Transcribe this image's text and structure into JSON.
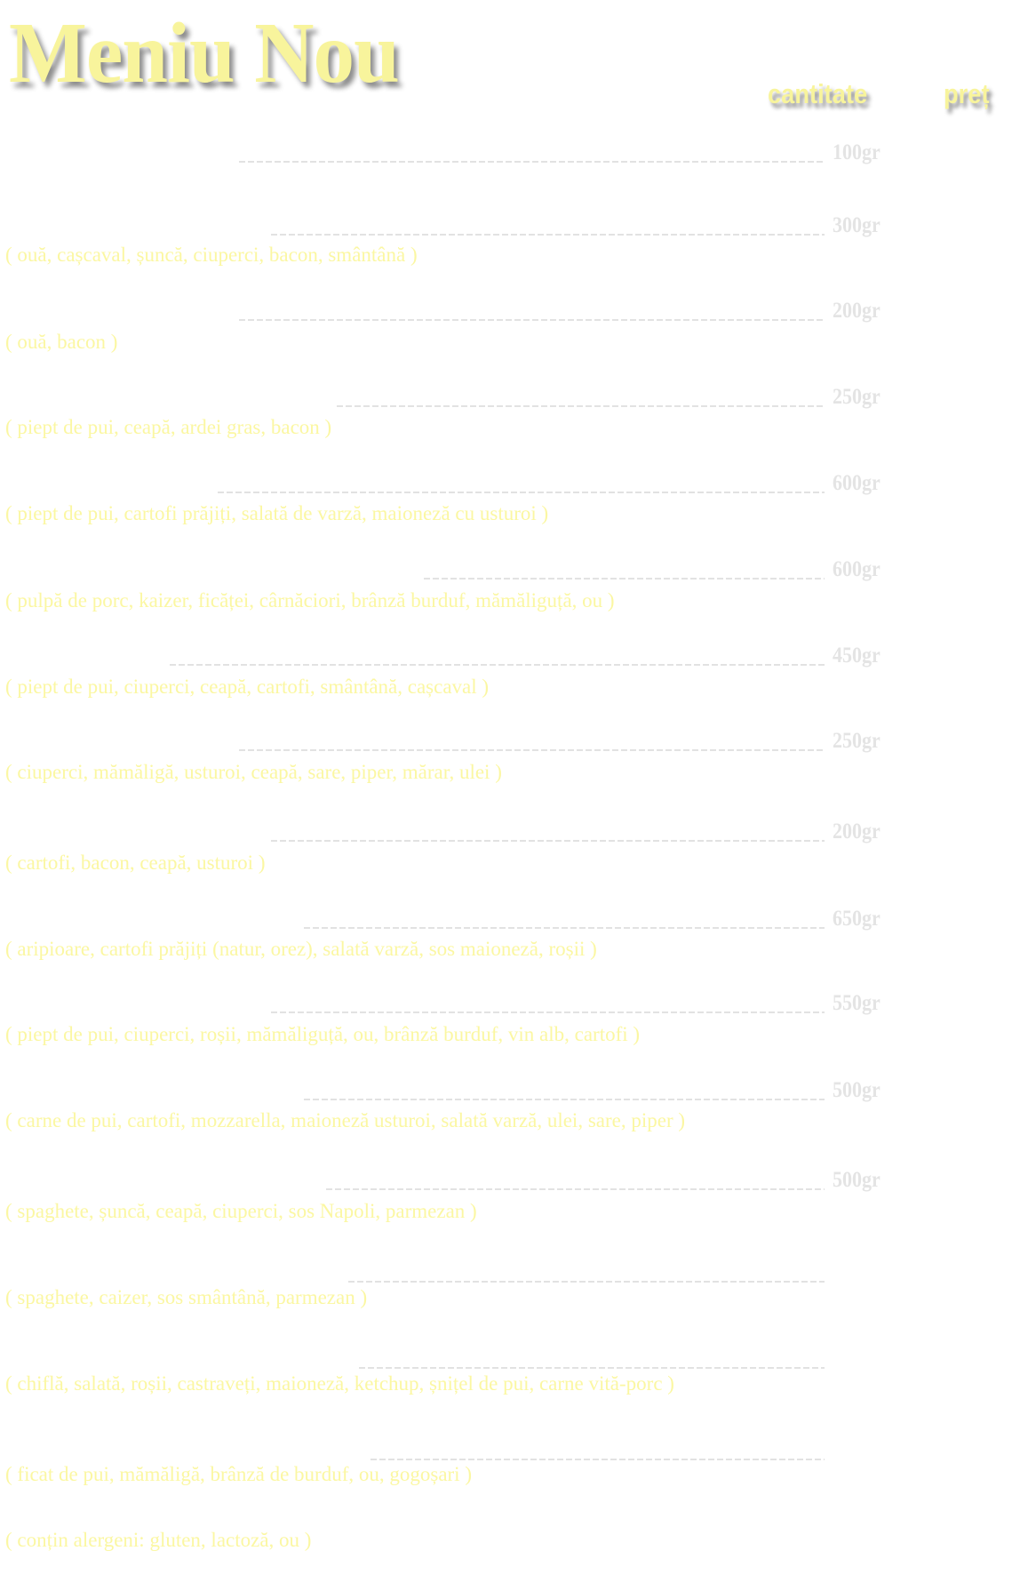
{
  "title": "Meniu Nou",
  "headers": {
    "quantity": "cantitate",
    "price": "preț"
  },
  "colors": {
    "title": "#f8f49c",
    "ingredients": "#fbf7a2",
    "quantity": "#e4e4e4",
    "background": "#ffffff"
  },
  "items": [
    {
      "quantity": "100gr",
      "ingredients": ""
    },
    {
      "quantity": "300gr",
      "ingredients": "( ouă, cașcaval, șuncă, ciuperci, bacon, smântână )"
    },
    {
      "quantity": "200gr",
      "ingredients": "( ouă, bacon )"
    },
    {
      "quantity": "250gr",
      "ingredients": "( piept de pui, ceapă, ardei gras, bacon )"
    },
    {
      "quantity": "600gr",
      "ingredients": "( piept de pui, cartofi prăjiți, salată de varză, maioneză cu usturoi )"
    },
    {
      "quantity": "600gr",
      "ingredients": "( pulpă de porc, kaizer, ficăței, cârnăciori, brânză burduf, mămăliguță, ou )"
    },
    {
      "quantity": "450gr",
      "ingredients": "( piept de pui, ciuperci, ceapă, cartofi, smântână, cașcaval )"
    },
    {
      "quantity": "250gr",
      "ingredients": "( ciuperci, mămăligă, usturoi, ceapă, sare, piper, mărar, ulei )"
    },
    {
      "quantity": "200gr",
      "ingredients": "( cartofi, bacon, ceapă, usturoi )"
    },
    {
      "quantity": "650gr",
      "ingredients": "( aripioare, cartofi prăjiți (natur, orez), salată varză, sos maioneză, roșii )"
    },
    {
      "quantity": "550gr",
      "ingredients": "( piept de pui, ciuperci, roșii, mămăliguță, ou, brânză burduf, vin alb, cartofi )"
    },
    {
      "quantity": "500gr",
      "ingredients": "( carne de pui, cartofi, mozzarella, maioneză usturoi, salată varză, ulei, sare, piper )"
    },
    {
      "quantity": "500gr",
      "ingredients": "( spaghete, șuncă, ceapă, ciuperci, sos Napoli, parmezan )"
    },
    {
      "quantity": "",
      "ingredients": "( spaghete, caizer, sos smântână, parmezan )"
    },
    {
      "quantity": "",
      "ingredients": "( chiflă, salată, roșii, castraveți, maioneză, ketchup, șnițel de pui, carne vită-porc )"
    },
    {
      "quantity": "",
      "ingredients": "( ficat de pui, mămăligă, brânză de burduf, ou, gogoșari )"
    }
  ],
  "allergens_note": "( conțin alergeni: gluten, lactoză, ou )"
}
